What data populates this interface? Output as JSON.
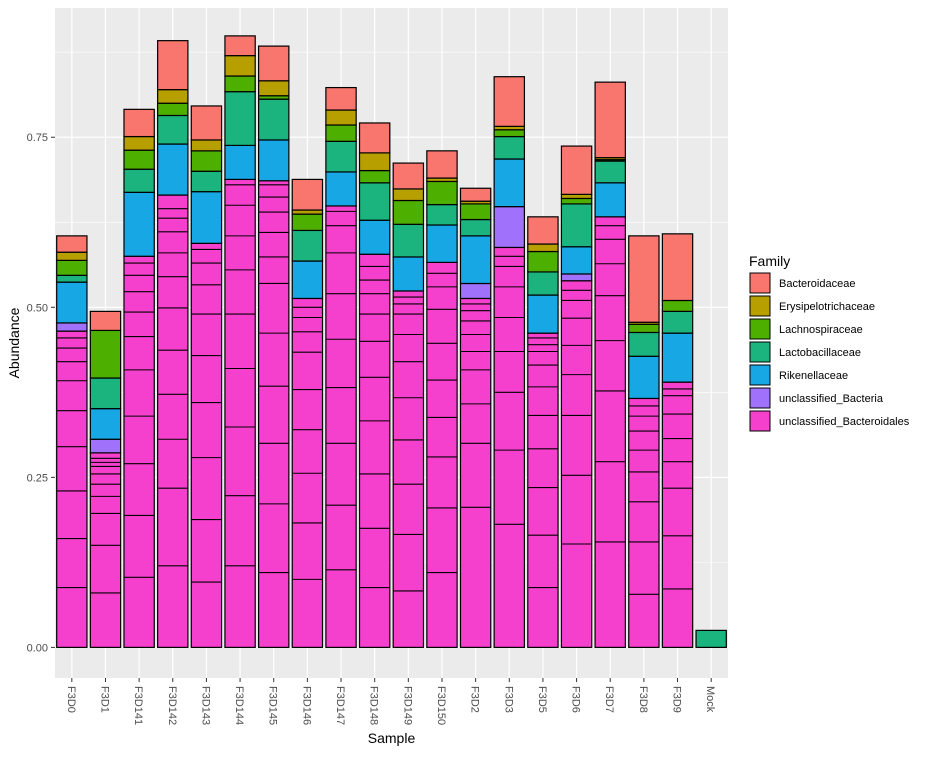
{
  "chart_data": {
    "type": "bar",
    "stacked": true,
    "xlabel": "Sample",
    "ylabel": "Abundance",
    "ylim": [
      -0.045,
      0.94
    ],
    "yticks": [
      0.0,
      0.25,
      0.5,
      0.75
    ],
    "ytick_labels": [
      "0.00",
      "0.25",
      "0.50",
      "0.75"
    ],
    "grid": true,
    "legend_position": "right",
    "legend_title": "Family",
    "categories": [
      "F3D0",
      "F3D1",
      "F3D141",
      "F3D142",
      "F3D143",
      "F3D144",
      "F3D145",
      "F3D146",
      "F3D147",
      "F3D148",
      "F3D149",
      "F3D150",
      "F3D2",
      "F3D3",
      "F3D5",
      "F3D6",
      "F3D7",
      "F3D8",
      "F3D9",
      "Mock"
    ],
    "series": [
      {
        "name": "Bacteroidaceae",
        "color": "#F8766D",
        "values": [
          0.024,
          0.028,
          0.04,
          0.072,
          0.05,
          0.029,
          0.051,
          0.045,
          0.033,
          0.044,
          0.038,
          0.04,
          0.019,
          0.073,
          0.04,
          0.071,
          0.111,
          0.127,
          0.098,
          0
        ]
      },
      {
        "name": "Erysipelotrichaceae",
        "color": "#B79F00",
        "values": [
          0.012,
          0.0,
          0.02,
          0.02,
          0.016,
          0.03,
          0.022,
          0.006,
          0.022,
          0.026,
          0.017,
          0.005,
          0.004,
          0.005,
          0.011,
          0.006,
          0.003,
          0.003,
          0.0,
          0
        ]
      },
      {
        "name": "Lachnospiraceae",
        "color": "#4DAF00",
        "values": [
          0.022,
          0.07,
          0.028,
          0.018,
          0.03,
          0.023,
          0.005,
          0.024,
          0.024,
          0.018,
          0.035,
          0.034,
          0.023,
          0.01,
          0.03,
          0.008,
          0.002,
          0.012,
          0.016,
          0
        ]
      },
      {
        "name": "Lactobacillaceae",
        "color": "#1BB47E",
        "values": [
          0.01,
          0.045,
          0.034,
          0.042,
          0.03,
          0.079,
          0.06,
          0.045,
          0.045,
          0.055,
          0.048,
          0.03,
          0.024,
          0.033,
          0.034,
          0.063,
          0.032,
          0.035,
          0.032,
          0.025
        ]
      },
      {
        "name": "Rikenellaceae",
        "color": "#18A7E5",
        "values": [
          0.06,
          0.045,
          0.094,
          0.075,
          0.076,
          0.05,
          0.06,
          0.055,
          0.05,
          0.05,
          0.05,
          0.055,
          0.07,
          0.07,
          0.056,
          0.04,
          0.05,
          0.062,
          0.072,
          0
        ]
      },
      {
        "name": "unclassified_Bacteria",
        "color": "#A071FA",
        "values": [
          0.012,
          0.02,
          0.0,
          0.0,
          0.0,
          0.0,
          0.0,
          0.0,
          0.0,
          0.0,
          0.0,
          0.0,
          0.022,
          0.06,
          0.0,
          0.01,
          0.0,
          0.0,
          0.0,
          0
        ]
      },
      {
        "name": "unclassified_Bacteroidales",
        "color": "#F540CE",
        "values": [
          0.465,
          0.286,
          0.575,
          0.665,
          0.594,
          0.688,
          0.686,
          0.513,
          0.649,
          0.578,
          0.524,
          0.566,
          0.513,
          0.588,
          0.462,
          0.539,
          0.633,
          0.366,
          0.39,
          0
        ]
      }
    ],
    "otu_breaks": [
      [
        0.088,
        0.16,
        0.23,
        0.295,
        0.348,
        0.392,
        0.42,
        0.44,
        0.455
      ],
      [
        0.08,
        0.15,
        0.197,
        0.222,
        0.24,
        0.255,
        0.266,
        0.272,
        0.278
      ],
      [
        0.103,
        0.194,
        0.27,
        0.34,
        0.408,
        0.457,
        0.493,
        0.523,
        0.547,
        0.565
      ],
      [
        0.12,
        0.234,
        0.306,
        0.372,
        0.437,
        0.499,
        0.545,
        0.58,
        0.611,
        0.631,
        0.645
      ],
      [
        0.096,
        0.188,
        0.279,
        0.36,
        0.429,
        0.49,
        0.533,
        0.565,
        0.585
      ],
      [
        0.12,
        0.223,
        0.324,
        0.41,
        0.49,
        0.555,
        0.605,
        0.65,
        0.68
      ],
      [
        0.11,
        0.211,
        0.3,
        0.384,
        0.462,
        0.535,
        0.574,
        0.61,
        0.64,
        0.662,
        0.68
      ],
      [
        0.1,
        0.183,
        0.256,
        0.32,
        0.379,
        0.434,
        0.464,
        0.485,
        0.5
      ],
      [
        0.114,
        0.209,
        0.3,
        0.382,
        0.453,
        0.52,
        0.58,
        0.62,
        0.641
      ],
      [
        0.088,
        0.175,
        0.255,
        0.333,
        0.397,
        0.45,
        0.49,
        0.52,
        0.54,
        0.56
      ],
      [
        0.083,
        0.166,
        0.24,
        0.305,
        0.367,
        0.42,
        0.46,
        0.49,
        0.505,
        0.515
      ],
      [
        0.11,
        0.205,
        0.28,
        0.338,
        0.393,
        0.447,
        0.497,
        0.53,
        0.55
      ],
      [
        0.206,
        0.3,
        0.358,
        0.408,
        0.435,
        0.46,
        0.48,
        0.495,
        0.505
      ],
      [
        0.181,
        0.29,
        0.375,
        0.435,
        0.485,
        0.53,
        0.56,
        0.575
      ],
      [
        0.088,
        0.165,
        0.235,
        0.292,
        0.341,
        0.383,
        0.415,
        0.435,
        0.445,
        0.455
      ],
      [
        0.152,
        0.253,
        0.341,
        0.401,
        0.444,
        0.484,
        0.51,
        0.525
      ],
      [
        0.155,
        0.273,
        0.377,
        0.451,
        0.517,
        0.564,
        0.6,
        0.62
      ],
      [
        0.078,
        0.155,
        0.214,
        0.258,
        0.29,
        0.318,
        0.34,
        0.355
      ],
      [
        0.086,
        0.164,
        0.234,
        0.273,
        0.307,
        0.343,
        0.37,
        0.38
      ],
      []
    ]
  }
}
